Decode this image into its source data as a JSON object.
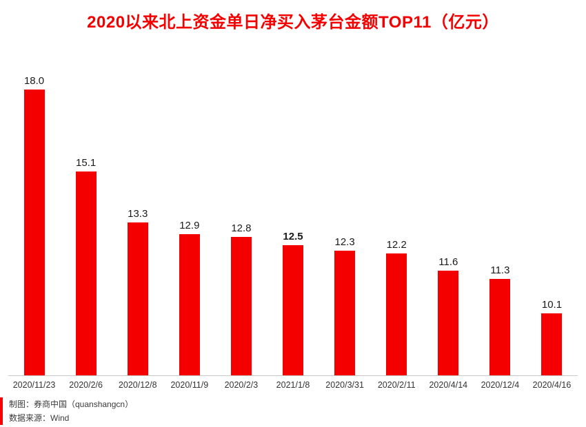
{
  "title": "2020以来北上资金单日净买入茅台金额TOP11（亿元）",
  "chart_data": {
    "type": "bar",
    "title": "2020以来北上资金单日净买入茅台金额TOP11（亿元）",
    "categories": [
      "2020/11/23",
      "2020/2/6",
      "2020/12/8",
      "2020/11/9",
      "2020/2/3",
      "2021/1/8",
      "2020/3/31",
      "2020/2/11",
      "2020/4/14",
      "2020/12/4",
      "2020/4/16"
    ],
    "values": [
      18.0,
      15.1,
      13.3,
      12.9,
      12.8,
      12.5,
      12.3,
      12.2,
      11.6,
      11.3,
      10.1
    ],
    "value_labels": [
      "18.0",
      "15.1",
      "13.3",
      "12.9",
      "12.8",
      "12.5",
      "12.3",
      "12.2",
      "11.6",
      "11.3",
      "10.1"
    ],
    "bold_label_index": 5,
    "xlabel": "",
    "ylabel": "",
    "ylim": [
      7.9,
      18.2
    ],
    "grid": false,
    "legend": "none",
    "bar_color": "#f40000"
  },
  "footer": {
    "credit": "制图：券商中国（quanshangcn）",
    "source": "数据来源：Wind"
  },
  "colors": {
    "accent_red": "#f40000",
    "axis_line": "#c9c9c9",
    "value_text": "#1a1a1a",
    "date_text": "#333333",
    "footer_text": "#3a3a3a"
  }
}
